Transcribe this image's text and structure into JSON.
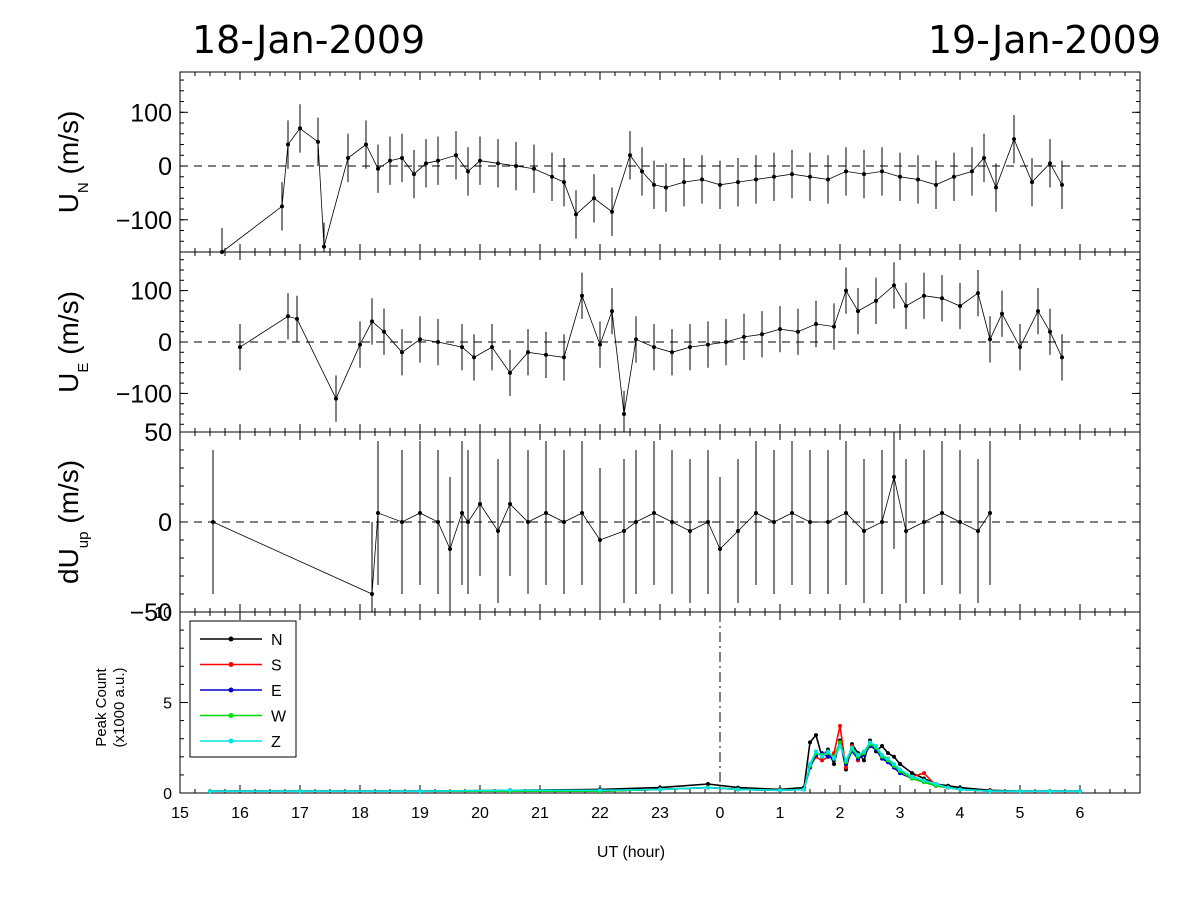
{
  "dates": {
    "left": "18-Jan-2009",
    "right": "19-Jan-2009"
  },
  "colors": {
    "N": "#000000",
    "S": "#ff0000",
    "E": "#0000cc",
    "W": "#00dd00",
    "Z": "#00e5e5"
  },
  "chart_data": [
    {
      "type": "scatter",
      "panel": "UN",
      "ylabel_main": "U",
      "ylabel_sub": "N",
      "ylabel_unit": "(m/s)",
      "xlabel": "",
      "x_units": "UT hour (continuous; values above 24 are hours of 19-Jan-2009)",
      "ylim": [
        -160,
        175
      ],
      "yticks": [
        "100",
        "0",
        "−100"
      ],
      "ytick_values": [
        100,
        0,
        -100
      ],
      "zero_line": "dashed",
      "x": [
        15.7,
        16.7,
        16.8,
        17.0,
        17.3,
        17.4,
        17.8,
        18.1,
        18.3,
        18.5,
        18.7,
        18.9,
        19.1,
        19.3,
        19.6,
        19.8,
        20.0,
        20.3,
        20.6,
        20.9,
        21.2,
        21.4,
        21.6,
        21.9,
        22.2,
        22.5,
        22.7,
        22.9,
        23.1,
        23.4,
        23.7,
        24.0,
        24.3,
        24.6,
        24.9,
        25.2,
        25.5,
        25.8,
        26.1,
        26.4,
        26.7,
        27.0,
        27.3,
        27.6,
        27.9,
        28.2,
        28.4,
        28.6,
        28.9,
        29.2,
        29.5,
        29.7
      ],
      "y": [
        -160,
        -75,
        40,
        70,
        45,
        -150,
        15,
        40,
        -5,
        10,
        15,
        -15,
        5,
        10,
        20,
        -10,
        10,
        5,
        0,
        -5,
        -20,
        -30,
        -90,
        -60,
        -85,
        20,
        -10,
        -35,
        -40,
        -30,
        -25,
        -35,
        -30,
        -25,
        -20,
        -15,
        -20,
        -25,
        -10,
        -15,
        -10,
        -20,
        -25,
        -35,
        -20,
        -10,
        15,
        -40,
        50,
        -30,
        5,
        -35
      ]
    },
    {
      "type": "scatter",
      "panel": "UE",
      "ylabel_main": "U",
      "ylabel_sub": "E",
      "ylabel_unit": "(m/s)",
      "xlabel": "",
      "x_units": "UT hour (continuous; values above 24 are hours of 19-Jan-2009)",
      "ylim": [
        -175,
        175
      ],
      "yticks": [
        "100",
        "0",
        "−100"
      ],
      "ytick_values": [
        100,
        0,
        -100
      ],
      "zero_line": "dashed",
      "x": [
        16.0,
        16.8,
        16.95,
        17.6,
        18.0,
        18.2,
        18.4,
        18.7,
        19.0,
        19.3,
        19.7,
        19.9,
        20.2,
        20.5,
        20.8,
        21.1,
        21.4,
        21.7,
        22.0,
        22.2,
        22.4,
        22.6,
        22.9,
        23.2,
        23.5,
        23.8,
        24.1,
        24.4,
        24.7,
        25.0,
        25.3,
        25.6,
        25.9,
        26.1,
        26.3,
        26.6,
        26.9,
        27.1,
        27.4,
        27.7,
        28.0,
        28.3,
        28.5,
        28.7,
        29.0,
        29.3,
        29.5,
        29.7
      ],
      "y": [
        -10,
        50,
        45,
        -110,
        -5,
        40,
        20,
        -20,
        5,
        0,
        -10,
        -30,
        -10,
        -60,
        -20,
        -25,
        -30,
        90,
        -5,
        60,
        -140,
        5,
        -10,
        -20,
        -10,
        -5,
        0,
        10,
        15,
        25,
        20,
        35,
        30,
        100,
        60,
        80,
        110,
        70,
        90,
        85,
        70,
        95,
        5,
        55,
        -10,
        60,
        20,
        -30
      ]
    },
    {
      "type": "scatter",
      "panel": "dUup",
      "ylabel_main": "dU",
      "ylabel_sub": "up",
      "ylabel_unit": "(m/s)",
      "xlabel": "",
      "x_units": "UT hour (continuous; values above 24 are hours of 19-Jan-2009)",
      "ylim": [
        -50,
        50
      ],
      "yticks": [
        "50",
        "0",
        "−50"
      ],
      "ytick_values": [
        50,
        0,
        -50
      ],
      "zero_line": "dashed",
      "x": [
        15.55,
        18.2,
        18.3,
        18.7,
        19.0,
        19.3,
        19.5,
        19.7,
        19.8,
        20.0,
        20.3,
        20.5,
        20.8,
        21.1,
        21.4,
        21.7,
        22.0,
        22.4,
        22.6,
        22.9,
        23.2,
        23.5,
        23.8,
        24.0,
        24.3,
        24.6,
        24.9,
        25.2,
        25.5,
        25.8,
        26.1,
        26.4,
        26.7,
        26.9,
        27.1,
        27.4,
        27.7,
        28.0,
        28.3,
        28.5
      ],
      "y": [
        0,
        -40,
        5,
        0,
        5,
        0,
        -15,
        5,
        0,
        10,
        -5,
        10,
        0,
        5,
        0,
        5,
        -10,
        -5,
        0,
        5,
        0,
        -5,
        0,
        -15,
        -5,
        5,
        0,
        5,
        0,
        0,
        5,
        -5,
        0,
        25,
        -5,
        0,
        5,
        0,
        -5,
        5
      ]
    },
    {
      "type": "line",
      "panel": "peak",
      "ylabel": "Peak Count",
      "ylabel_unit": "(x1000 a.u.)",
      "xlabel": "UT (hour)",
      "x_units": "UT hour (continuous; values above 24 are hours of 19-Jan-2009)",
      "ylim": [
        0,
        10
      ],
      "yticks": [
        "10",
        "5",
        "0"
      ],
      "ytick_values": [
        10,
        5,
        0
      ],
      "xlim": [
        15,
        30
      ],
      "xticks": [
        "15",
        "16",
        "17",
        "18",
        "19",
        "20",
        "21",
        "22",
        "23",
        "0",
        "1",
        "2",
        "3",
        "4",
        "5",
        "6"
      ],
      "xtick_values": [
        15,
        16,
        17,
        18,
        19,
        20,
        21,
        22,
        23,
        24,
        25,
        26,
        27,
        28,
        29,
        30
      ],
      "vline": 24,
      "legend_position": "top-left",
      "x": [
        15.5,
        17.0,
        19.0,
        20.5,
        22.0,
        23.0,
        23.8,
        24.3,
        25.0,
        25.4,
        25.5,
        25.6,
        25.7,
        25.8,
        25.9,
        26.0,
        26.1,
        26.2,
        26.3,
        26.4,
        26.5,
        26.6,
        26.7,
        26.8,
        26.9,
        27.0,
        27.2,
        27.4,
        27.6,
        27.8,
        28.0,
        28.5,
        29.0,
        29.5,
        30.0
      ],
      "series": [
        {
          "name": "N",
          "color": "#000000",
          "values": [
            0.1,
            0.1,
            0.1,
            0.15,
            0.2,
            0.3,
            0.5,
            0.3,
            0.2,
            0.3,
            2.8,
            3.2,
            2.0,
            2.4,
            1.6,
            2.9,
            1.3,
            2.7,
            2.2,
            1.8,
            2.9,
            2.3,
            2.6,
            2.2,
            2.0,
            1.6,
            1.1,
            0.8,
            0.5,
            0.4,
            0.3,
            0.15,
            0.1,
            0.1,
            0.1
          ]
        },
        {
          "name": "S",
          "color": "#ff0000",
          "values": [
            0.1,
            0.1,
            0.1,
            0.1,
            0.1,
            0.2,
            0.3,
            0.2,
            0.15,
            0.2,
            1.5,
            2.0,
            1.8,
            2.0,
            2.2,
            3.7,
            1.4,
            2.6,
            1.8,
            2.3,
            2.7,
            2.5,
            2.0,
            1.9,
            1.5,
            1.2,
            0.9,
            1.1,
            0.4,
            0.3,
            0.2,
            0.1,
            0.1,
            0.1,
            0.1
          ]
        },
        {
          "name": "E",
          "color": "#0000cc",
          "values": [
            0.1,
            0.1,
            0.1,
            0.1,
            0.1,
            0.2,
            0.3,
            0.2,
            0.15,
            0.2,
            1.4,
            2.1,
            2.2,
            2.0,
            1.9,
            2.7,
            1.6,
            2.3,
            1.9,
            2.1,
            2.6,
            2.4,
            1.9,
            1.7,
            1.4,
            1.1,
            0.8,
            0.6,
            0.4,
            0.3,
            0.2,
            0.1,
            0.1,
            0.1,
            0.1
          ]
        },
        {
          "name": "W",
          "color": "#00dd00",
          "values": [
            0.1,
            0.1,
            0.1,
            0.1,
            0.1,
            0.2,
            0.3,
            0.2,
            0.15,
            0.2,
            1.5,
            2.2,
            2.1,
            2.2,
            2.0,
            2.8,
            1.7,
            2.4,
            2.0,
            2.2,
            2.7,
            2.5,
            2.0,
            1.8,
            1.5,
            1.2,
            0.8,
            0.6,
            0.4,
            0.3,
            0.2,
            0.1,
            0.1,
            0.1,
            0.1
          ]
        },
        {
          "name": "Z",
          "color": "#00e5e5",
          "values": [
            0.1,
            0.1,
            0.1,
            0.15,
            0.15,
            0.2,
            0.3,
            0.2,
            0.15,
            0.2,
            1.6,
            2.3,
            2.0,
            2.3,
            1.9,
            2.6,
            1.8,
            2.5,
            2.1,
            2.3,
            2.8,
            2.6,
            2.1,
            1.9,
            1.6,
            1.3,
            0.9,
            0.7,
            0.5,
            0.3,
            0.2,
            0.1,
            0.1,
            0.1,
            0.1
          ]
        }
      ]
    }
  ]
}
